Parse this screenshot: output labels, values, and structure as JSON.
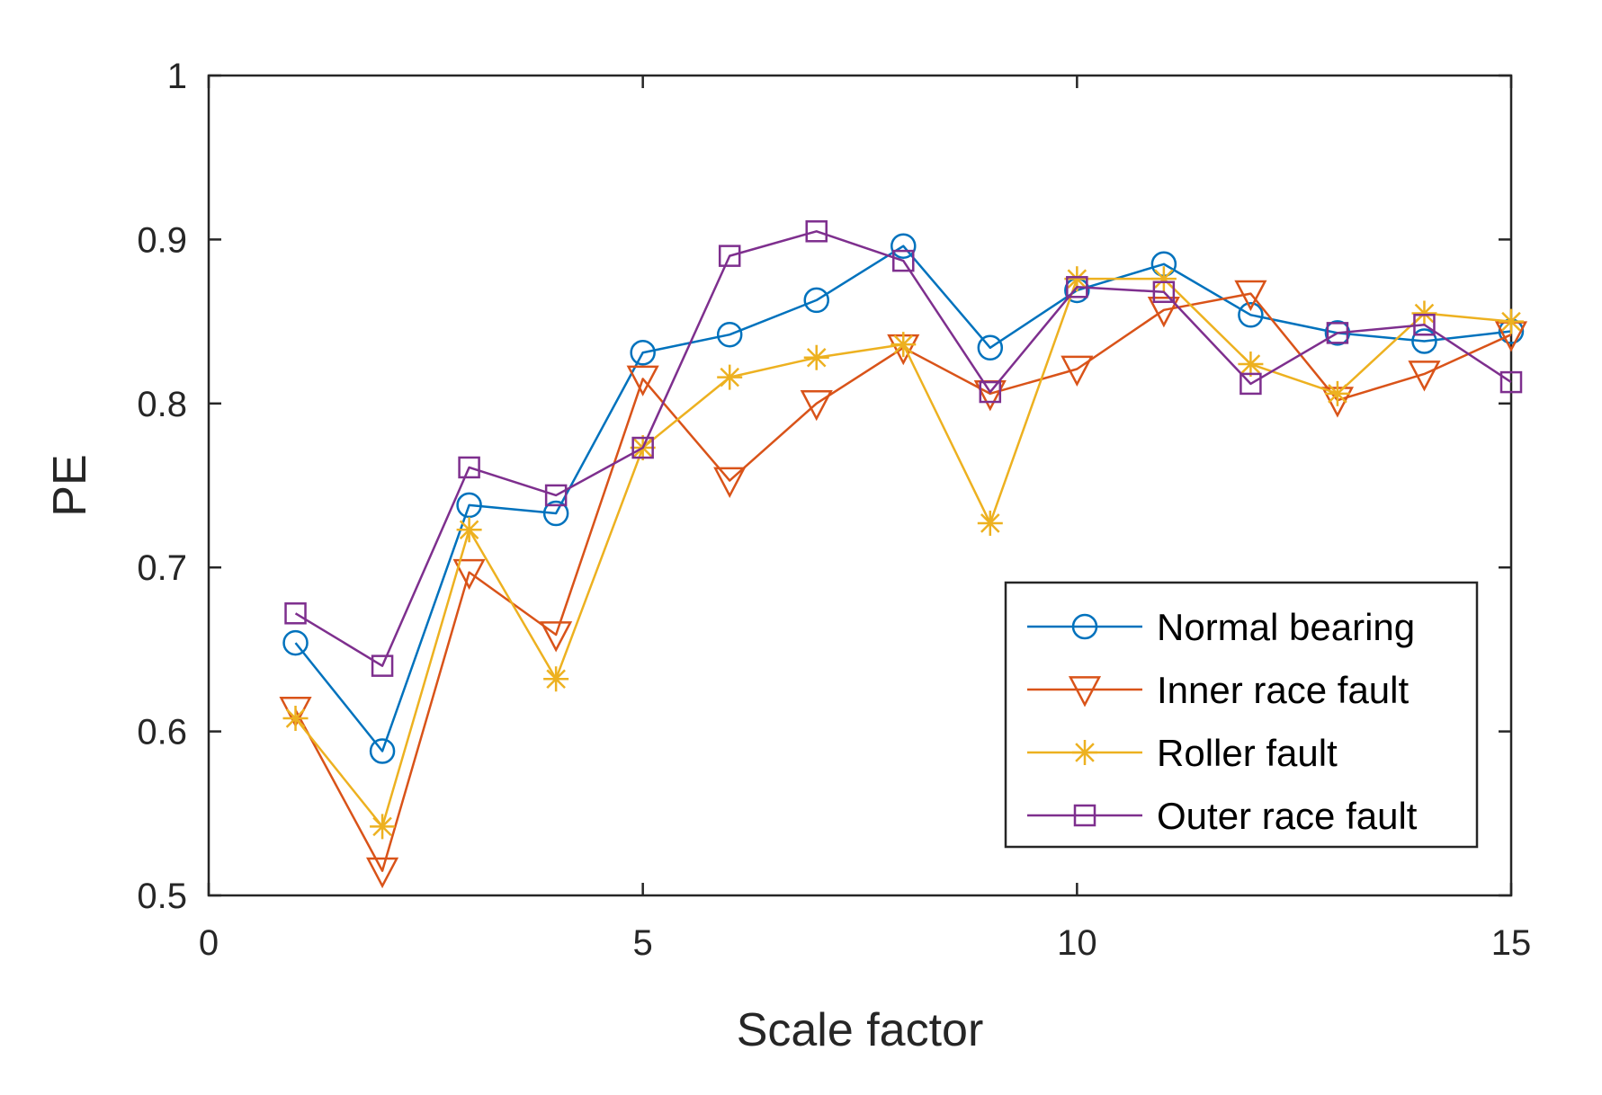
{
  "chart_data": {
    "type": "line",
    "title": "",
    "xlabel": "Scale factor",
    "ylabel": "PE",
    "xlim": [
      0,
      15
    ],
    "ylim": [
      0.5,
      1
    ],
    "xticks": [
      0,
      5,
      10,
      15
    ],
    "yticks": [
      0.5,
      0.6,
      0.7,
      0.8,
      0.9,
      1
    ],
    "xtick_labels": [
      "0",
      "5",
      "10",
      "15"
    ],
    "ytick_labels": [
      "0.5",
      "0.6",
      "0.7",
      "0.8",
      "0.9",
      "1"
    ],
    "grid": false,
    "legend_position": "bottom-right",
    "x": [
      1,
      2,
      3,
      4,
      5,
      6,
      7,
      8,
      9,
      10,
      11,
      12,
      13,
      14,
      15
    ],
    "series": [
      {
        "name": "Normal bearing",
        "marker": "circle",
        "color": "#0072BD",
        "values": [
          0.654,
          0.588,
          0.738,
          0.733,
          0.831,
          0.842,
          0.863,
          0.896,
          0.834,
          0.869,
          0.885,
          0.854,
          0.843,
          0.838,
          0.844
        ]
      },
      {
        "name": "Inner race fault",
        "marker": "triangle-down",
        "color": "#D95319",
        "values": [
          0.613,
          0.515,
          0.697,
          0.659,
          0.815,
          0.753,
          0.8,
          0.834,
          0.806,
          0.821,
          0.857,
          0.867,
          0.802,
          0.818,
          0.842
        ]
      },
      {
        "name": "Roller fault",
        "marker": "asterisk",
        "color": "#EDB120",
        "values": [
          0.608,
          0.542,
          0.723,
          0.632,
          0.773,
          0.816,
          0.828,
          0.836,
          0.727,
          0.876,
          0.876,
          0.824,
          0.806,
          0.855,
          0.85
        ]
      },
      {
        "name": "Outer race fault",
        "marker": "square",
        "color": "#7E2F8E",
        "values": [
          0.672,
          0.64,
          0.761,
          0.744,
          0.773,
          0.89,
          0.905,
          0.887,
          0.807,
          0.871,
          0.868,
          0.812,
          0.843,
          0.848,
          0.813
        ]
      }
    ]
  }
}
